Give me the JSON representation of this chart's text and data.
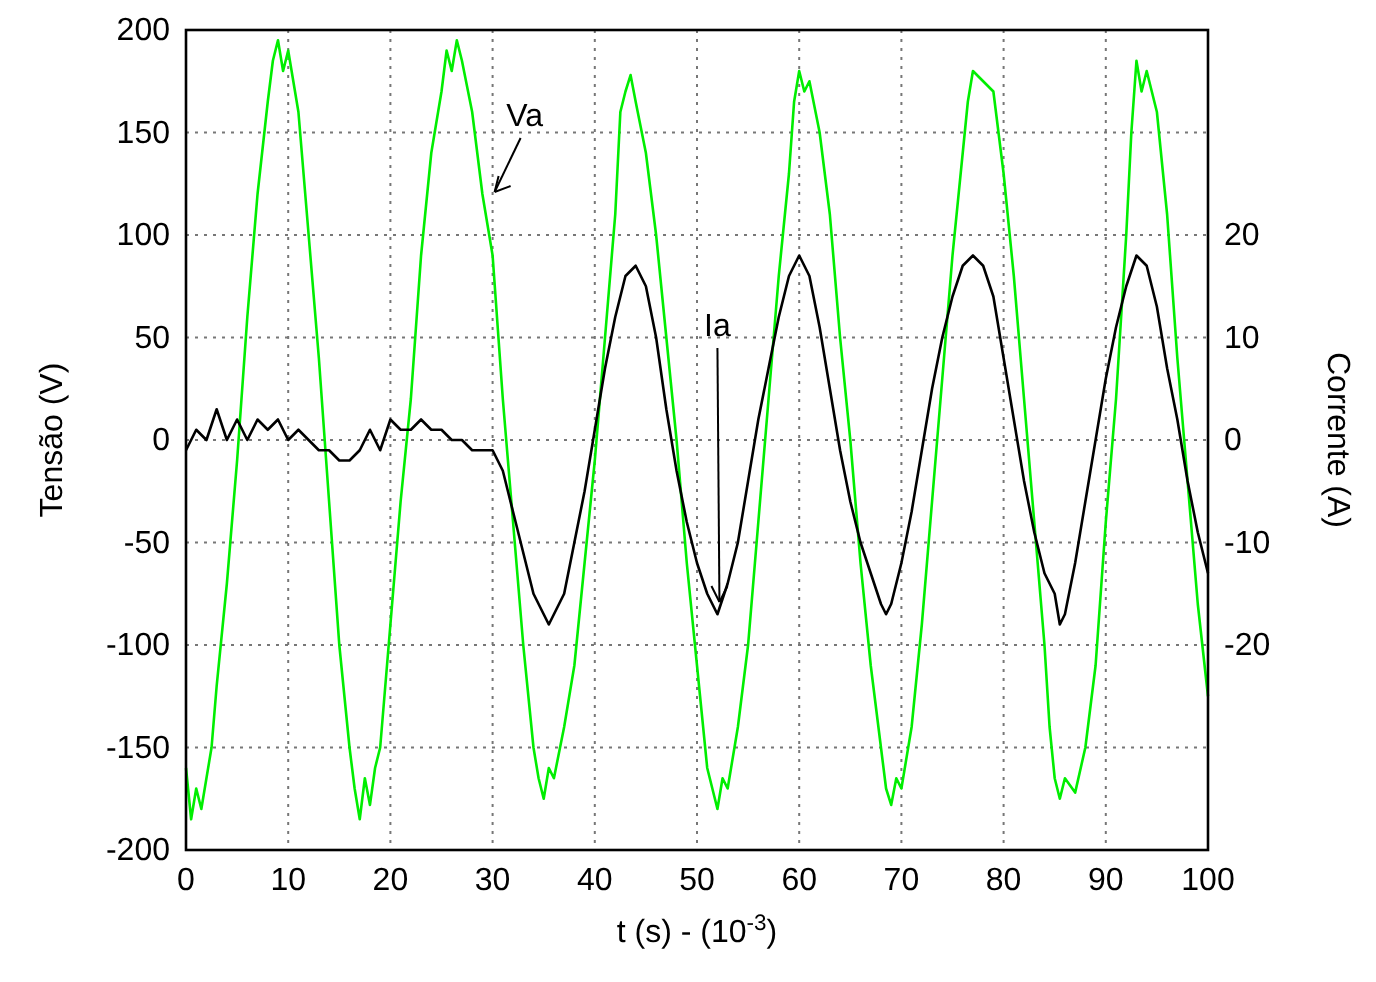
{
  "chart_data": {
    "type": "line",
    "xlabel": "t (s) - (10$^{-3}$)",
    "ylabel": "Tensão (V)",
    "y2label": "Corrente (A)",
    "xlim": [
      0,
      100
    ],
    "xticks": [
      0,
      10,
      20,
      30,
      40,
      50,
      60,
      70,
      80,
      90,
      100
    ],
    "ylim": [
      -200,
      200
    ],
    "yticks": [
      -200,
      -150,
      -100,
      -50,
      0,
      50,
      100,
      150,
      200
    ],
    "y2lim": [
      -40,
      40
    ],
    "y2ticks": [
      -20,
      -10,
      0,
      10,
      20
    ],
    "grid": true,
    "marker": "none",
    "line_style": "solid",
    "series": [
      {
        "color": "#00ee00",
        "x": [
          0,
          0.5,
          1,
          1.5,
          2,
          2.5,
          3,
          4,
          5,
          6,
          7,
          8,
          8.5,
          9,
          9.5,
          10,
          11,
          12,
          13,
          14,
          15,
          16,
          16.5,
          17,
          17.5,
          18,
          18.5,
          19,
          20,
          21,
          22,
          23,
          24,
          25,
          25.5,
          26,
          26.5,
          27,
          28,
          29,
          30,
          31,
          32,
          33,
          34,
          34.5,
          35,
          35.5,
          36,
          37,
          38,
          39,
          40,
          41,
          42,
          42.5,
          43,
          43.5,
          44,
          45,
          46,
          47,
          48,
          49,
          50,
          51,
          51.5,
          52,
          52.5,
          53,
          54,
          55,
          56,
          57,
          58,
          59,
          59.5,
          60,
          60.5,
          61,
          62,
          63,
          64,
          65,
          66,
          67,
          68,
          68.5,
          69,
          69.5,
          70,
          71,
          72,
          73,
          74,
          75,
          76,
          76.5,
          77,
          78,
          79,
          80,
          81,
          82,
          83,
          84,
          84.5,
          85,
          85.5,
          86,
          87,
          88,
          89,
          90,
          91,
          92,
          92.5,
          93,
          93.5,
          94,
          95,
          96,
          97,
          98,
          99,
          100
        ],
        "values": [
          -160,
          -185,
          -170,
          -180,
          -165,
          -150,
          -120,
          -70,
          -10,
          60,
          120,
          165,
          185,
          195,
          180,
          190,
          160,
          100,
          40,
          -30,
          -100,
          -150,
          -170,
          -185,
          -165,
          -178,
          -160,
          -150,
          -90,
          -30,
          20,
          90,
          140,
          170,
          190,
          180,
          195,
          185,
          160,
          120,
          90,
          20,
          -40,
          -100,
          -150,
          -165,
          -175,
          -160,
          -165,
          -140,
          -110,
          -60,
          -10,
          50,
          110,
          160,
          170,
          178,
          165,
          140,
          100,
          50,
          0,
          -60,
          -110,
          -160,
          -170,
          -180,
          -165,
          -170,
          -140,
          -100,
          -40,
          20,
          80,
          130,
          165,
          180,
          170,
          175,
          150,
          110,
          50,
          0,
          -60,
          -110,
          -150,
          -170,
          -178,
          -165,
          -170,
          -140,
          -90,
          -30,
          30,
          90,
          140,
          165,
          180,
          175,
          170,
          130,
          80,
          20,
          -40,
          -100,
          -140,
          -165,
          -175,
          -165,
          -172,
          -150,
          -110,
          -40,
          20,
          100,
          150,
          185,
          170,
          180,
          160,
          110,
          40,
          -20,
          -80,
          -125
        ]
      },
      {
        "color": "#000000",
        "axis": "y2",
        "x": [
          0,
          1,
          2,
          3,
          4,
          5,
          6,
          7,
          8,
          9,
          10,
          11,
          12,
          13,
          14,
          15,
          16,
          17,
          18,
          19,
          20,
          21,
          22,
          23,
          24,
          25,
          26,
          27,
          28,
          29,
          30,
          31,
          32,
          33,
          34,
          35,
          35.5,
          36,
          37,
          38,
          39,
          40,
          41,
          42,
          43,
          44,
          45,
          46,
          47,
          48,
          49,
          50,
          51,
          52,
          53,
          54,
          55,
          56,
          57,
          58,
          59,
          60,
          61,
          62,
          63,
          64,
          65,
          66,
          67,
          68,
          68.5,
          69,
          70,
          71,
          72,
          73,
          74,
          75,
          76,
          77,
          78,
          79,
          80,
          81,
          82,
          83,
          84,
          85,
          85.5,
          86,
          87,
          88,
          89,
          90,
          91,
          92,
          93,
          94,
          95,
          96,
          97,
          98,
          99,
          100
        ],
        "values": [
          -1,
          1,
          0,
          3,
          0,
          2,
          0,
          2,
          1,
          2,
          0,
          1,
          0,
          -1,
          -1,
          -2,
          -2,
          -1,
          1,
          -1,
          2,
          1,
          1,
          2,
          1,
          1,
          0,
          0,
          -1,
          -1,
          -1,
          -3,
          -7,
          -11,
          -15,
          -17,
          -18,
          -17,
          -15,
          -10,
          -5,
          1,
          7,
          12,
          16,
          17,
          15,
          10,
          3,
          -3,
          -8,
          -12,
          -15,
          -17,
          -14,
          -10,
          -4,
          2,
          7,
          12,
          16,
          18,
          16,
          11,
          5,
          -1,
          -6,
          -10,
          -13,
          -16,
          -17,
          -16,
          -12,
          -7,
          -1,
          5,
          10,
          14,
          17,
          18,
          17,
          14,
          8,
          2,
          -4,
          -9,
          -13,
          -15,
          -18,
          -17,
          -12,
          -6,
          0,
          6,
          11,
          15,
          18,
          17,
          13,
          7,
          2,
          -4,
          -9,
          -13
        ]
      }
    ],
    "annotations": [
      {
        "text": "Va",
        "x": 30,
        "y": 120
      },
      {
        "text": "Ia",
        "x": 52,
        "y": -80
      }
    ]
  }
}
